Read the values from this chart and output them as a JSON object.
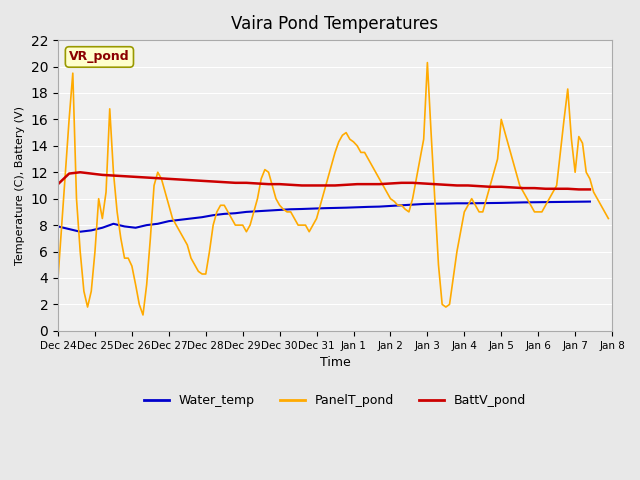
{
  "title": "Vaira Pond Temperatures",
  "ylabel": "Temperature (C), Battery (V)",
  "xlabel": "Time",
  "location_label": "VR_pond",
  "ylim": [
    0,
    22
  ],
  "yticks": [
    0,
    2,
    4,
    6,
    8,
    10,
    12,
    14,
    16,
    18,
    20,
    22
  ],
  "background_color": "#e8e8e8",
  "plot_bg_color": "#f0f0f0",
  "water_temp_color": "#0000cc",
  "panel_temp_color": "#ffaa00",
  "batt_color": "#cc0000",
  "legend_labels": [
    "Water_temp",
    "PanelT_pond",
    "BattV_pond"
  ],
  "water_temp_x": [
    0.0,
    0.3,
    0.6,
    0.9,
    1.2,
    1.5,
    1.8,
    2.1,
    2.4,
    2.7,
    3.0,
    3.3,
    3.6,
    3.9,
    4.2,
    4.5,
    4.8,
    5.1,
    5.4,
    5.7,
    6.0,
    6.3,
    6.6,
    6.9,
    7.2,
    7.5,
    7.8,
    8.1,
    8.4,
    8.7,
    9.0,
    9.3,
    9.6,
    9.9,
    10.2,
    10.5,
    10.8,
    11.1,
    11.4,
    11.7,
    12.0,
    12.3,
    12.6,
    12.9,
    13.2,
    13.5,
    13.8,
    14.1,
    14.4
  ],
  "water_temp_y": [
    7.9,
    7.7,
    7.5,
    7.6,
    7.8,
    8.1,
    7.9,
    7.8,
    8.0,
    8.1,
    8.3,
    8.4,
    8.5,
    8.6,
    8.75,
    8.85,
    8.9,
    9.0,
    9.05,
    9.1,
    9.15,
    9.2,
    9.22,
    9.25,
    9.28,
    9.3,
    9.32,
    9.35,
    9.38,
    9.4,
    9.45,
    9.5,
    9.55,
    9.6,
    9.62,
    9.63,
    9.65,
    9.65,
    9.66,
    9.67,
    9.68,
    9.7,
    9.72,
    9.73,
    9.74,
    9.75,
    9.76,
    9.77,
    9.78
  ],
  "panel_temp_x": [
    0.0,
    0.1,
    0.2,
    0.3,
    0.4,
    0.5,
    0.6,
    0.7,
    0.8,
    0.9,
    1.0,
    1.1,
    1.2,
    1.3,
    1.4,
    1.5,
    1.6,
    1.7,
    1.8,
    1.9,
    2.0,
    2.1,
    2.2,
    2.3,
    2.4,
    2.5,
    2.6,
    2.7,
    2.8,
    2.9,
    3.0,
    3.1,
    3.2,
    3.3,
    3.4,
    3.5,
    3.6,
    3.7,
    3.8,
    3.9,
    4.0,
    4.1,
    4.2,
    4.3,
    4.4,
    4.5,
    4.6,
    4.7,
    4.8,
    4.9,
    5.0,
    5.1,
    5.2,
    5.3,
    5.4,
    5.5,
    5.6,
    5.7,
    5.8,
    5.9,
    6.0,
    6.1,
    6.2,
    6.3,
    6.4,
    6.5,
    6.6,
    6.7,
    6.8,
    6.9,
    7.0,
    7.1,
    7.2,
    7.3,
    7.4,
    7.5,
    7.6,
    7.7,
    7.8,
    7.9,
    8.0,
    8.1,
    8.2,
    8.3,
    8.4,
    8.5,
    8.6,
    8.7,
    8.8,
    8.9,
    9.0,
    9.1,
    9.2,
    9.3,
    9.4,
    9.5,
    9.6,
    9.7,
    9.8,
    9.9,
    10.0,
    10.1,
    10.2,
    10.3,
    10.4,
    10.5,
    10.6,
    10.7,
    10.8,
    10.9,
    11.0,
    11.1,
    11.2,
    11.3,
    11.4,
    11.5,
    11.6,
    11.7,
    11.8,
    11.9,
    12.0,
    12.1,
    12.2,
    12.3,
    12.4,
    12.5,
    12.6,
    12.7,
    12.8,
    12.9,
    13.0,
    13.1,
    13.2,
    13.3,
    13.4,
    13.5,
    13.6,
    13.7,
    13.8,
    13.9,
    14.0,
    14.1,
    14.2,
    14.3,
    14.4,
    14.5,
    14.6,
    14.7,
    14.8,
    14.9
  ],
  "panel_temp_y": [
    4.0,
    8.0,
    12.0,
    16.0,
    19.5,
    10.0,
    6.0,
    3.0,
    1.8,
    3.0,
    6.0,
    10.0,
    8.5,
    10.5,
    16.8,
    12.0,
    9.0,
    7.0,
    5.5,
    5.5,
    4.9,
    3.5,
    2.0,
    1.2,
    3.5,
    7.0,
    11.0,
    12.0,
    11.5,
    10.5,
    9.5,
    8.5,
    8.0,
    7.5,
    7.0,
    6.5,
    5.5,
    5.0,
    4.5,
    4.3,
    4.3,
    6.0,
    8.0,
    9.0,
    9.5,
    9.5,
    9.0,
    8.5,
    8.0,
    8.0,
    8.0,
    7.5,
    8.0,
    9.0,
    10.0,
    11.5,
    12.2,
    12.0,
    11.0,
    10.0,
    9.5,
    9.2,
    9.0,
    9.0,
    8.5,
    8.0,
    8.0,
    8.0,
    7.5,
    8.0,
    8.5,
    9.5,
    10.5,
    11.5,
    12.5,
    13.5,
    14.3,
    14.8,
    15.0,
    14.5,
    14.3,
    14.0,
    13.5,
    13.5,
    13.0,
    12.5,
    12.0,
    11.5,
    11.0,
    10.5,
    10.0,
    9.8,
    9.5,
    9.5,
    9.2,
    9.0,
    10.0,
    11.5,
    13.0,
    14.5,
    20.3,
    15.0,
    10.0,
    5.0,
    2.0,
    1.8,
    2.0,
    4.0,
    6.0,
    7.5,
    9.0,
    9.5,
    10.0,
    9.5,
    9.0,
    9.0,
    10.0,
    11.0,
    12.0,
    13.0,
    16.0,
    15.0,
    14.0,
    13.0,
    12.0,
    11.0,
    10.5,
    10.0,
    9.5,
    9.0,
    9.0,
    9.0,
    9.5,
    10.0,
    10.5,
    11.0,
    13.5,
    16.0,
    18.3,
    14.5,
    12.0,
    14.7,
    14.2,
    12.0,
    11.5,
    10.5,
    10.0,
    9.5,
    9.0,
    8.5
  ],
  "batt_x": [
    0.0,
    0.3,
    0.6,
    0.9,
    1.2,
    1.5,
    1.8,
    2.1,
    2.4,
    2.7,
    3.0,
    3.3,
    3.6,
    3.9,
    4.2,
    4.5,
    4.8,
    5.1,
    5.4,
    5.7,
    6.0,
    6.3,
    6.6,
    6.9,
    7.2,
    7.5,
    7.8,
    8.1,
    8.4,
    8.7,
    9.0,
    9.3,
    9.6,
    9.9,
    10.2,
    10.5,
    10.8,
    11.1,
    11.4,
    11.7,
    12.0,
    12.3,
    12.6,
    12.9,
    13.2,
    13.5,
    13.8,
    14.1,
    14.4
  ],
  "batt_y": [
    11.1,
    11.9,
    12.0,
    11.9,
    11.8,
    11.75,
    11.7,
    11.65,
    11.6,
    11.55,
    11.5,
    11.45,
    11.4,
    11.35,
    11.3,
    11.25,
    11.2,
    11.2,
    11.15,
    11.1,
    11.1,
    11.05,
    11.0,
    11.0,
    11.0,
    11.0,
    11.05,
    11.1,
    11.1,
    11.1,
    11.15,
    11.2,
    11.2,
    11.15,
    11.1,
    11.05,
    11.0,
    11.0,
    10.95,
    10.9,
    10.9,
    10.85,
    10.8,
    10.8,
    10.75,
    10.75,
    10.75,
    10.7,
    10.7
  ]
}
